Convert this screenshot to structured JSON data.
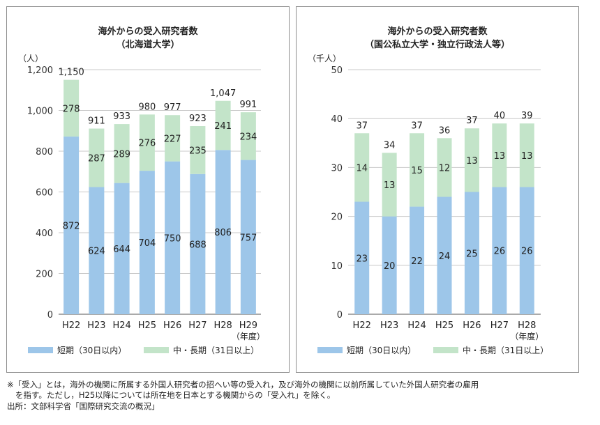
{
  "charts": [
    {
      "title": "海外からの受入研究者数",
      "subtitle": "（北海道大学）",
      "unit": "（人）",
      "year_unit": "（年度）",
      "legend": [
        "短期（30日以内）",
        "中・長期（31日以上）"
      ],
      "colors": {
        "short": "#9dc6e9",
        "long": "#c3e4c9"
      }
    },
    {
      "title": "海外からの受入研究者数",
      "subtitle": "（国公私立大学・独立行政法人等）",
      "unit": "（千人）",
      "year_unit": "（年度）",
      "legend": [
        "短期（30日以内）",
        "中・長期（31日以上）"
      ],
      "colors": {
        "short": "#9dc6e9",
        "long": "#c3e4c9"
      }
    }
  ],
  "chart_data": [
    {
      "type": "bar",
      "stacked": true,
      "title": "海外からの受入研究者数（北海道大学）",
      "ylabel": "（人）",
      "xlabel": "（年度）",
      "categories": [
        "H22",
        "H23",
        "H24",
        "H25",
        "H26",
        "H27",
        "H28",
        "H29"
      ],
      "series": [
        {
          "name": "短期（30日以内）",
          "values": [
            872,
            624,
            644,
            704,
            750,
            688,
            806,
            757
          ],
          "color": "#9dc6e9"
        },
        {
          "name": "中・長期（31日以上）",
          "values": [
            278,
            287,
            289,
            276,
            227,
            235,
            241,
            234
          ],
          "color": "#c3e4c9"
        }
      ],
      "totals": [
        "1,150",
        "911",
        "933",
        "980",
        "977",
        "923",
        "1,047",
        "991"
      ],
      "yticks": [
        "0",
        "200",
        "400",
        "600",
        "800",
        "1,000",
        "1,200"
      ],
      "ylim": [
        0,
        1200
      ],
      "grid": true,
      "legend_position": "bottom"
    },
    {
      "type": "bar",
      "stacked": true,
      "title": "海外からの受入研究者数（国公私立大学・独立行政法人等）",
      "ylabel": "（千人）",
      "xlabel": "（年度）",
      "categories": [
        "H22",
        "H23",
        "H24",
        "H25",
        "H26",
        "H27",
        "H28"
      ],
      "series": [
        {
          "name": "短期（30日以内）",
          "values": [
            23,
            20,
            22,
            24,
            25,
            26,
            26
          ],
          "color": "#9dc6e9"
        },
        {
          "name": "中・長期（31日以上）",
          "values": [
            14,
            13,
            15,
            12,
            13,
            13,
            13
          ],
          "color": "#c3e4c9"
        }
      ],
      "totals": [
        "37",
        "34",
        "37",
        "36",
        "37",
        "40",
        "39"
      ],
      "yticks": [
        "0",
        "10",
        "20",
        "30",
        "40",
        "50"
      ],
      "ylim": [
        0,
        50
      ],
      "grid": true,
      "legend_position": "bottom"
    }
  ],
  "notes": {
    "line1": "※「受入」とは，海外の機関に所属する外国人研究者の招へい等の受入れ，及び海外の機関に以前所属していた外国人研究者の雇用",
    "line2": "を指す。ただし，H25以降については所在地を日本とする機関からの「受入れ」を除く。",
    "source": "出所：文部科学省「国際研究交流の概況」"
  }
}
